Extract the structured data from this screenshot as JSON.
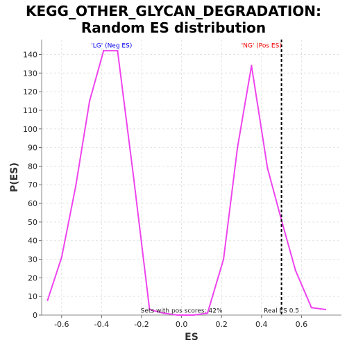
{
  "chart_data": {
    "type": "line",
    "title_lines": [
      "KEGG_OTHER_GLYCAN_DEGRADATION:",
      "Random ES distribution"
    ],
    "xlabel": "ES",
    "ylabel": "P(ES)",
    "xlim": [
      -0.7,
      0.8
    ],
    "ylim": [
      0,
      148
    ],
    "xticks": [
      -0.6,
      -0.4,
      -0.2,
      0.0,
      0.2,
      0.4,
      0.6
    ],
    "xtick_labels": [
      "-0.6",
      "-0.4",
      "-0.2",
      "0.0",
      "0.2",
      "0.4",
      "0.6"
    ],
    "yticks": [
      0,
      10,
      20,
      30,
      40,
      50,
      60,
      70,
      80,
      90,
      100,
      110,
      120,
      130,
      140
    ],
    "grid": true,
    "series": [
      {
        "color": "#ee44ee",
        "x": [
          -0.67,
          -0.6,
          -0.53,
          -0.46,
          -0.39,
          -0.32,
          -0.24,
          -0.16,
          -0.09,
          -0.02,
          0.06,
          0.13,
          0.21,
          0.28,
          0.35,
          0.43,
          0.5,
          0.57,
          0.65,
          0.72
        ],
        "y": [
          8,
          31,
          69,
          115,
          142,
          142,
          74,
          3,
          1,
          0,
          0,
          1,
          30,
          90,
          134,
          79,
          51,
          24,
          4,
          3
        ]
      }
    ],
    "vlines": [
      {
        "x": 0.5,
        "style": "dashed",
        "color": "#000000"
      }
    ],
    "annotations": [
      {
        "text": "'LG' (Neg ES)",
        "x": -0.35,
        "y": 143,
        "color": "#0000ee"
      },
      {
        "text": "'NG' (Pos ES)",
        "x": 0.4,
        "y": 143,
        "color": "#ee0000"
      },
      {
        "text": "Sets with pos scores: 42%",
        "x": 0.0,
        "y": 0.5,
        "color": "#222222"
      },
      {
        "text": "Real ES 0.5",
        "x": 0.5,
        "y": 0.5,
        "color": "#222222"
      }
    ]
  }
}
